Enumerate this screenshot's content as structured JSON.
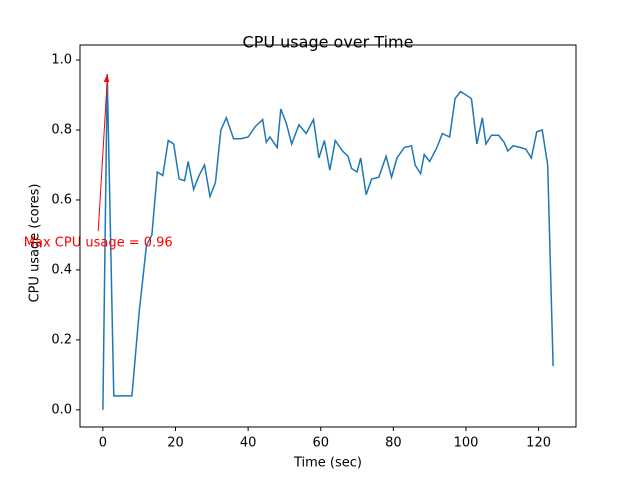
{
  "chart_data": {
    "type": "line",
    "title": "CPU usage over Time",
    "xlabel": "Time (sec)",
    "ylabel": "CPU usage (cores)",
    "x": [
      0,
      1.2,
      3,
      8,
      10,
      12,
      13.5,
      15,
      16.5,
      18,
      19.5,
      21,
      22.5,
      23.5,
      25,
      26.5,
      28,
      29.5,
      31,
      32.5,
      34,
      36,
      38,
      40,
      42,
      44,
      45,
      46,
      48,
      49,
      50.5,
      52,
      54,
      56,
      58,
      59.5,
      61,
      62.5,
      64,
      66,
      67.5,
      68.5,
      70,
      71,
      72.5,
      74,
      76,
      78,
      79.5,
      81,
      83,
      85,
      86,
      87.5,
      88.5,
      90,
      92,
      93.5,
      95.5,
      97,
      98.5,
      100,
      101.5,
      103,
      104.5,
      105.5,
      107,
      109,
      110.5,
      111.5,
      113,
      115,
      116.5,
      118,
      119.5,
      121,
      122.5,
      124
    ],
    "values": [
      0,
      0.96,
      0.04,
      0.04,
      0.28,
      0.47,
      0.5,
      0.68,
      0.67,
      0.77,
      0.76,
      0.66,
      0.655,
      0.71,
      0.63,
      0.67,
      0.7,
      0.61,
      0.65,
      0.8,
      0.835,
      0.775,
      0.775,
      0.78,
      0.81,
      0.83,
      0.765,
      0.78,
      0.75,
      0.86,
      0.82,
      0.76,
      0.815,
      0.79,
      0.83,
      0.72,
      0.77,
      0.685,
      0.77,
      0.74,
      0.725,
      0.69,
      0.68,
      0.72,
      0.615,
      0.66,
      0.665,
      0.725,
      0.665,
      0.72,
      0.75,
      0.755,
      0.7,
      0.675,
      0.73,
      0.71,
      0.75,
      0.79,
      0.78,
      0.89,
      0.91,
      0.9,
      0.89,
      0.76,
      0.835,
      0.76,
      0.785,
      0.785,
      0.765,
      0.74,
      0.755,
      0.75,
      0.745,
      0.72,
      0.795,
      0.8,
      0.7,
      0.125
    ],
    "color": "#1f77b4",
    "xlim": [
      -6.3,
      130.3
    ],
    "xticks": [
      0,
      20,
      40,
      60,
      80,
      100,
      120
    ],
    "ylim": [
      -0.049,
      1.043
    ],
    "yticks": [
      {
        "value": 0,
        "label": "0.0"
      },
      0.2,
      0.4,
      0.6,
      0.8,
      {
        "value": 1,
        "label": "1.0"
      }
    ],
    "annotation": {
      "text": "Max CPU usage = 0.96",
      "x": 1.2,
      "y": 0.96,
      "color": "red"
    }
  }
}
